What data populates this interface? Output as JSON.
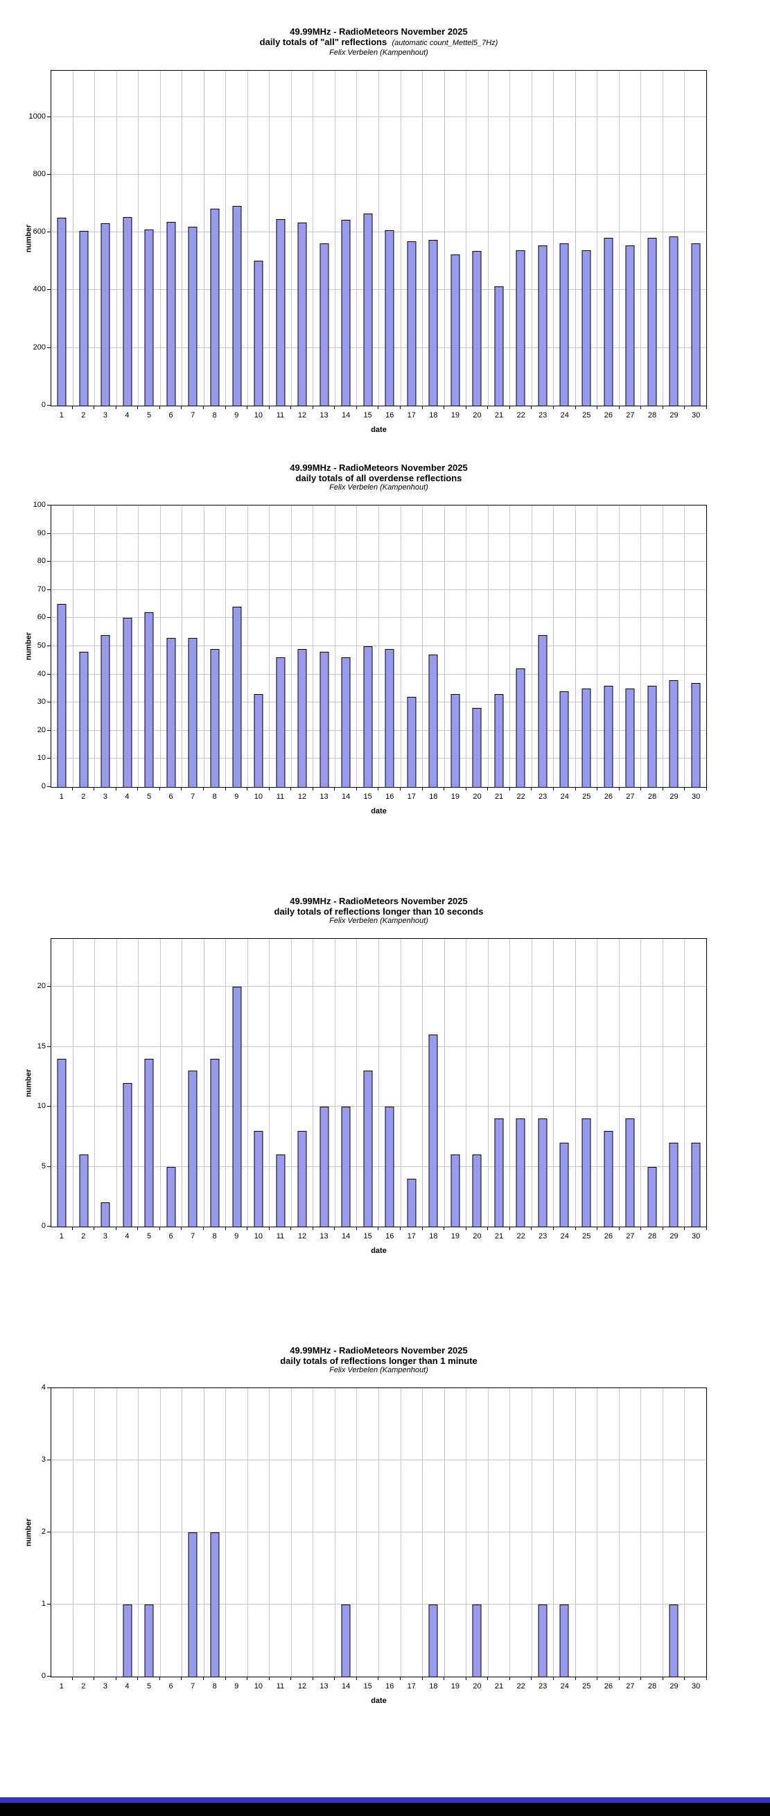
{
  "page": {
    "background": "#FFFFFF",
    "footer": {
      "blue_color": "#3333CC",
      "black_color": "#000000"
    }
  },
  "colors": {
    "bar_fill": "#9999EE",
    "bar_border": "#000000",
    "gridline": "#C8C8C8",
    "plot_border": "#000000"
  },
  "chart_data": [
    {
      "type": "bar",
      "title": "49.99MHz - RadioMeteors November 2025",
      "subtitle": "daily totals of \"all\" reflections",
      "subtitle_note": "(automatic count_Mettel5_7Hz)",
      "author": "Felix Verbelen (Kampenhout)",
      "xlabel": "date",
      "ylabel": "number",
      "grid": true,
      "legend_position": "none",
      "categories": [
        1,
        2,
        3,
        4,
        5,
        6,
        7,
        8,
        9,
        10,
        11,
        12,
        13,
        14,
        15,
        16,
        17,
        18,
        19,
        20,
        21,
        22,
        23,
        24,
        25,
        26,
        27,
        28,
        29,
        30
      ],
      "values": [
        650,
        605,
        632,
        653,
        610,
        637,
        620,
        683,
        692,
        503,
        645,
        635,
        562,
        643,
        665,
        608,
        569,
        574,
        524,
        535,
        412,
        538,
        556,
        563,
        538,
        582,
        554,
        581,
        585,
        561
      ],
      "y_ticks": [
        0,
        200,
        400,
        600,
        800,
        1000
      ],
      "ylim": [
        0,
        1160
      ]
    },
    {
      "type": "bar",
      "title": "49.99MHz - RadioMeteors November 2025",
      "subtitle": "daily totals of all overdense reflections",
      "subtitle_note": "",
      "author": "Felix Verbelen (Kampenhout)",
      "xlabel": "date",
      "ylabel": "number",
      "grid": true,
      "legend_position": "none",
      "categories": [
        1,
        2,
        3,
        4,
        5,
        6,
        7,
        8,
        9,
        10,
        11,
        12,
        13,
        14,
        15,
        16,
        17,
        18,
        19,
        20,
        21,
        22,
        23,
        24,
        25,
        26,
        27,
        28,
        29,
        30
      ],
      "values": [
        65,
        48,
        54,
        60,
        62,
        53,
        53,
        49,
        64,
        33,
        46,
        49,
        48,
        46,
        50,
        49,
        32,
        47,
        33,
        28,
        33,
        42,
        54,
        34,
        35,
        36,
        35,
        36,
        38,
        37
      ],
      "y_ticks": [
        0,
        10,
        20,
        30,
        40,
        50,
        60,
        70,
        80,
        90,
        100
      ],
      "ylim": [
        0,
        100
      ]
    },
    {
      "type": "bar",
      "title": "49.99MHz - RadioMeteors November 2025",
      "subtitle": "daily totals of reflections longer than 10 seconds",
      "subtitle_note": "",
      "author": "Felix Verbelen (Kampenhout)",
      "xlabel": "date",
      "ylabel": "number",
      "grid": true,
      "legend_position": "none",
      "categories": [
        1,
        2,
        3,
        4,
        5,
        6,
        7,
        8,
        9,
        10,
        11,
        12,
        13,
        14,
        15,
        16,
        17,
        18,
        19,
        20,
        21,
        22,
        23,
        24,
        25,
        26,
        27,
        28,
        29,
        30
      ],
      "values": [
        14,
        6,
        2,
        12,
        14,
        5,
        13,
        14,
        20,
        8,
        6,
        8,
        10,
        10,
        13,
        10,
        4,
        16,
        6,
        6,
        9,
        9,
        9,
        7,
        9,
        8,
        9,
        5,
        7,
        7
      ],
      "y_ticks": [
        0,
        5,
        10,
        15,
        20
      ],
      "ylim": [
        0,
        24
      ]
    },
    {
      "type": "bar",
      "title": "49.99MHz - RadioMeteors November 2025",
      "subtitle": "daily totals of reflections longer than 1 minute",
      "subtitle_note": "",
      "author": "Felix Verbelen (Kampenhout)",
      "xlabel": "date",
      "ylabel": "number",
      "grid": true,
      "legend_position": "none",
      "categories": [
        1,
        2,
        3,
        4,
        5,
        6,
        7,
        8,
        9,
        10,
        11,
        12,
        13,
        14,
        15,
        16,
        17,
        18,
        19,
        20,
        21,
        22,
        23,
        24,
        25,
        26,
        27,
        28,
        29,
        30
      ],
      "values": [
        0,
        0,
        0,
        1,
        1,
        0,
        2,
        2,
        0,
        0,
        0,
        0,
        0,
        1,
        0,
        0,
        0,
        1,
        0,
        1,
        0,
        0,
        1,
        1,
        0,
        0,
        0,
        0,
        1,
        0
      ],
      "y_ticks": [
        0,
        1,
        2,
        3,
        4
      ],
      "ylim": [
        0,
        4
      ]
    }
  ]
}
